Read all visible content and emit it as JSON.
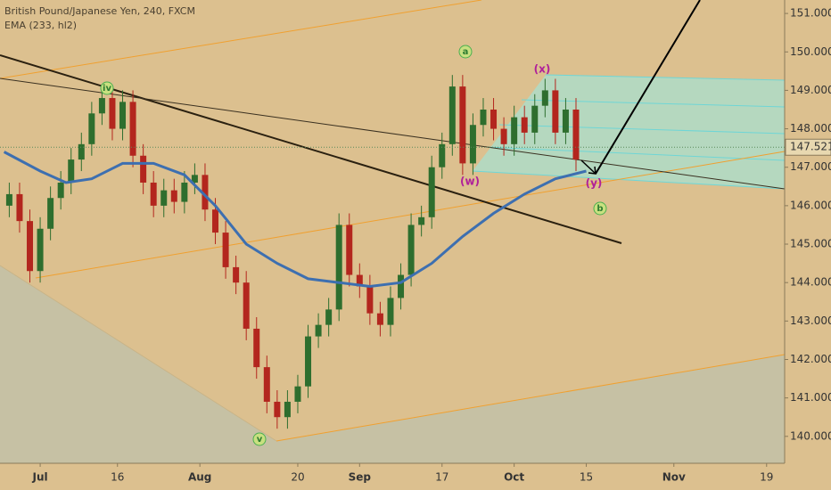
{
  "chart_data": {
    "type": "candlestick",
    "title": "British Pound/Japanese Yen, 240, FXCM",
    "subtitle": "EMA (233, hl2)",
    "annotations": [
      "iv",
      "v",
      "a",
      "b",
      "(w)",
      "(x)",
      "(y)"
    ],
    "last_price": 147.521,
    "last_price_label": "147.521",
    "xlim": [
      -7.8,
      144.5
    ],
    "xticks": [
      {
        "value": 0,
        "label": "Jul"
      },
      {
        "value": 15,
        "label": "16"
      },
      {
        "value": 31,
        "label": "Aug"
      },
      {
        "value": 50,
        "label": "20"
      },
      {
        "value": 62,
        "label": "Sep"
      },
      {
        "value": 78,
        "label": "17"
      },
      {
        "value": 92,
        "label": "Oct"
      },
      {
        "value": 106,
        "label": "15"
      },
      {
        "value": 123,
        "label": "Nov"
      },
      {
        "value": 141,
        "label": "19"
      }
    ],
    "ylim": [
      139.3,
      151.35
    ],
    "yticks": [
      {
        "value": 140,
        "label": "140.000"
      },
      {
        "value": 141,
        "label": "141.000"
      },
      {
        "value": 142,
        "label": "142.000"
      },
      {
        "value": 143,
        "label": "143.000"
      },
      {
        "value": 144,
        "label": "144.000"
      },
      {
        "value": 145,
        "label": "145.000"
      },
      {
        "value": 146,
        "label": "146.000"
      },
      {
        "value": 147,
        "label": "147.000"
      },
      {
        "value": 148,
        "label": "148.000"
      },
      {
        "value": 149,
        "label": "149.000"
      },
      {
        "value": 150,
        "label": "150.000"
      },
      {
        "value": 151,
        "label": "151.000"
      }
    ],
    "up_color": "#2e6e2e",
    "down_color": "#b3261e",
    "x": [
      -6,
      -4,
      -2,
      0,
      2,
      4,
      6,
      8,
      10,
      12,
      14,
      16,
      18,
      20,
      22,
      24,
      26,
      28,
      30,
      32,
      34,
      36,
      38,
      40,
      42,
      44,
      46,
      48,
      50,
      52,
      54,
      56,
      58,
      60,
      62,
      64,
      66,
      68,
      70,
      72,
      74,
      76,
      78,
      80,
      82,
      84,
      86,
      88,
      90,
      92,
      94,
      96,
      98,
      100,
      102,
      104
    ],
    "open": [
      146.0,
      146.3,
      145.6,
      144.3,
      145.4,
      146.2,
      146.6,
      147.2,
      147.6,
      148.4,
      148.8,
      148.0,
      148.7,
      147.3,
      146.6,
      146.0,
      146.4,
      146.1,
      146.6,
      146.8,
      145.9,
      145.3,
      144.4,
      144.0,
      142.8,
      141.8,
      140.9,
      140.5,
      140.9,
      141.3,
      142.6,
      142.9,
      143.3,
      145.5,
      144.2,
      143.9,
      143.2,
      142.9,
      143.6,
      144.2,
      145.5,
      145.7,
      147.0,
      147.6,
      149.1,
      147.1,
      148.1,
      148.5,
      148.0,
      147.6,
      148.3,
      147.9,
      148.6,
      149.0,
      147.9,
      148.5
    ],
    "high": [
      146.6,
      146.6,
      145.9,
      145.7,
      146.5,
      146.9,
      147.5,
      147.9,
      148.7,
      149.1,
      149.1,
      149.0,
      149.0,
      147.6,
      146.9,
      146.7,
      146.7,
      146.9,
      147.1,
      147.1,
      146.2,
      145.6,
      144.7,
      144.3,
      143.1,
      142.1,
      141.2,
      141.2,
      141.6,
      142.9,
      143.2,
      143.6,
      145.8,
      145.8,
      144.5,
      144.2,
      143.5,
      143.9,
      144.5,
      145.8,
      146.0,
      147.3,
      147.9,
      149.4,
      149.4,
      148.4,
      148.8,
      148.8,
      148.3,
      148.6,
      148.6,
      148.9,
      149.3,
      149.3,
      148.8,
      148.8
    ],
    "low": [
      145.7,
      145.3,
      144.0,
      144.0,
      145.1,
      145.9,
      146.3,
      146.9,
      147.3,
      148.1,
      147.7,
      147.7,
      147.0,
      146.3,
      145.7,
      145.7,
      145.8,
      145.8,
      146.3,
      145.6,
      145.0,
      144.1,
      143.7,
      142.5,
      141.5,
      140.6,
      140.2,
      140.2,
      140.6,
      141.0,
      142.3,
      142.6,
      143.0,
      143.9,
      143.6,
      142.9,
      142.6,
      142.6,
      143.3,
      143.9,
      145.2,
      145.4,
      146.7,
      147.3,
      146.8,
      146.8,
      147.8,
      147.7,
      147.3,
      147.3,
      147.6,
      147.6,
      148.3,
      147.6,
      147.6,
      146.9
    ],
    "close": [
      146.3,
      145.6,
      144.3,
      145.4,
      146.2,
      146.6,
      147.2,
      147.6,
      148.4,
      148.8,
      148.0,
      148.7,
      147.3,
      146.6,
      146.0,
      146.4,
      146.1,
      146.6,
      146.8,
      145.9,
      145.3,
      144.4,
      144.0,
      142.8,
      141.8,
      140.9,
      140.5,
      140.9,
      141.3,
      142.6,
      142.9,
      143.3,
      145.5,
      144.2,
      143.9,
      143.2,
      142.9,
      143.6,
      144.2,
      145.5,
      145.7,
      147.0,
      147.6,
      149.1,
      147.1,
      148.1,
      148.5,
      148.0,
      147.6,
      148.3,
      147.9,
      148.6,
      149.0,
      147.9,
      148.5,
      147.2
    ],
    "ema": {
      "color": "#3d6fb0",
      "x": [
        -7,
        0,
        5,
        10,
        16,
        22,
        28,
        34,
        40,
        46,
        52,
        58,
        64,
        70,
        76,
        82,
        88,
        94,
        100,
        106
      ],
      "values": [
        147.4,
        146.9,
        146.6,
        146.7,
        147.1,
        147.1,
        146.8,
        146.0,
        145.0,
        144.5,
        144.1,
        144.0,
        143.9,
        144.0,
        144.5,
        145.2,
        145.8,
        146.3,
        146.7,
        146.9
      ]
    }
  }
}
